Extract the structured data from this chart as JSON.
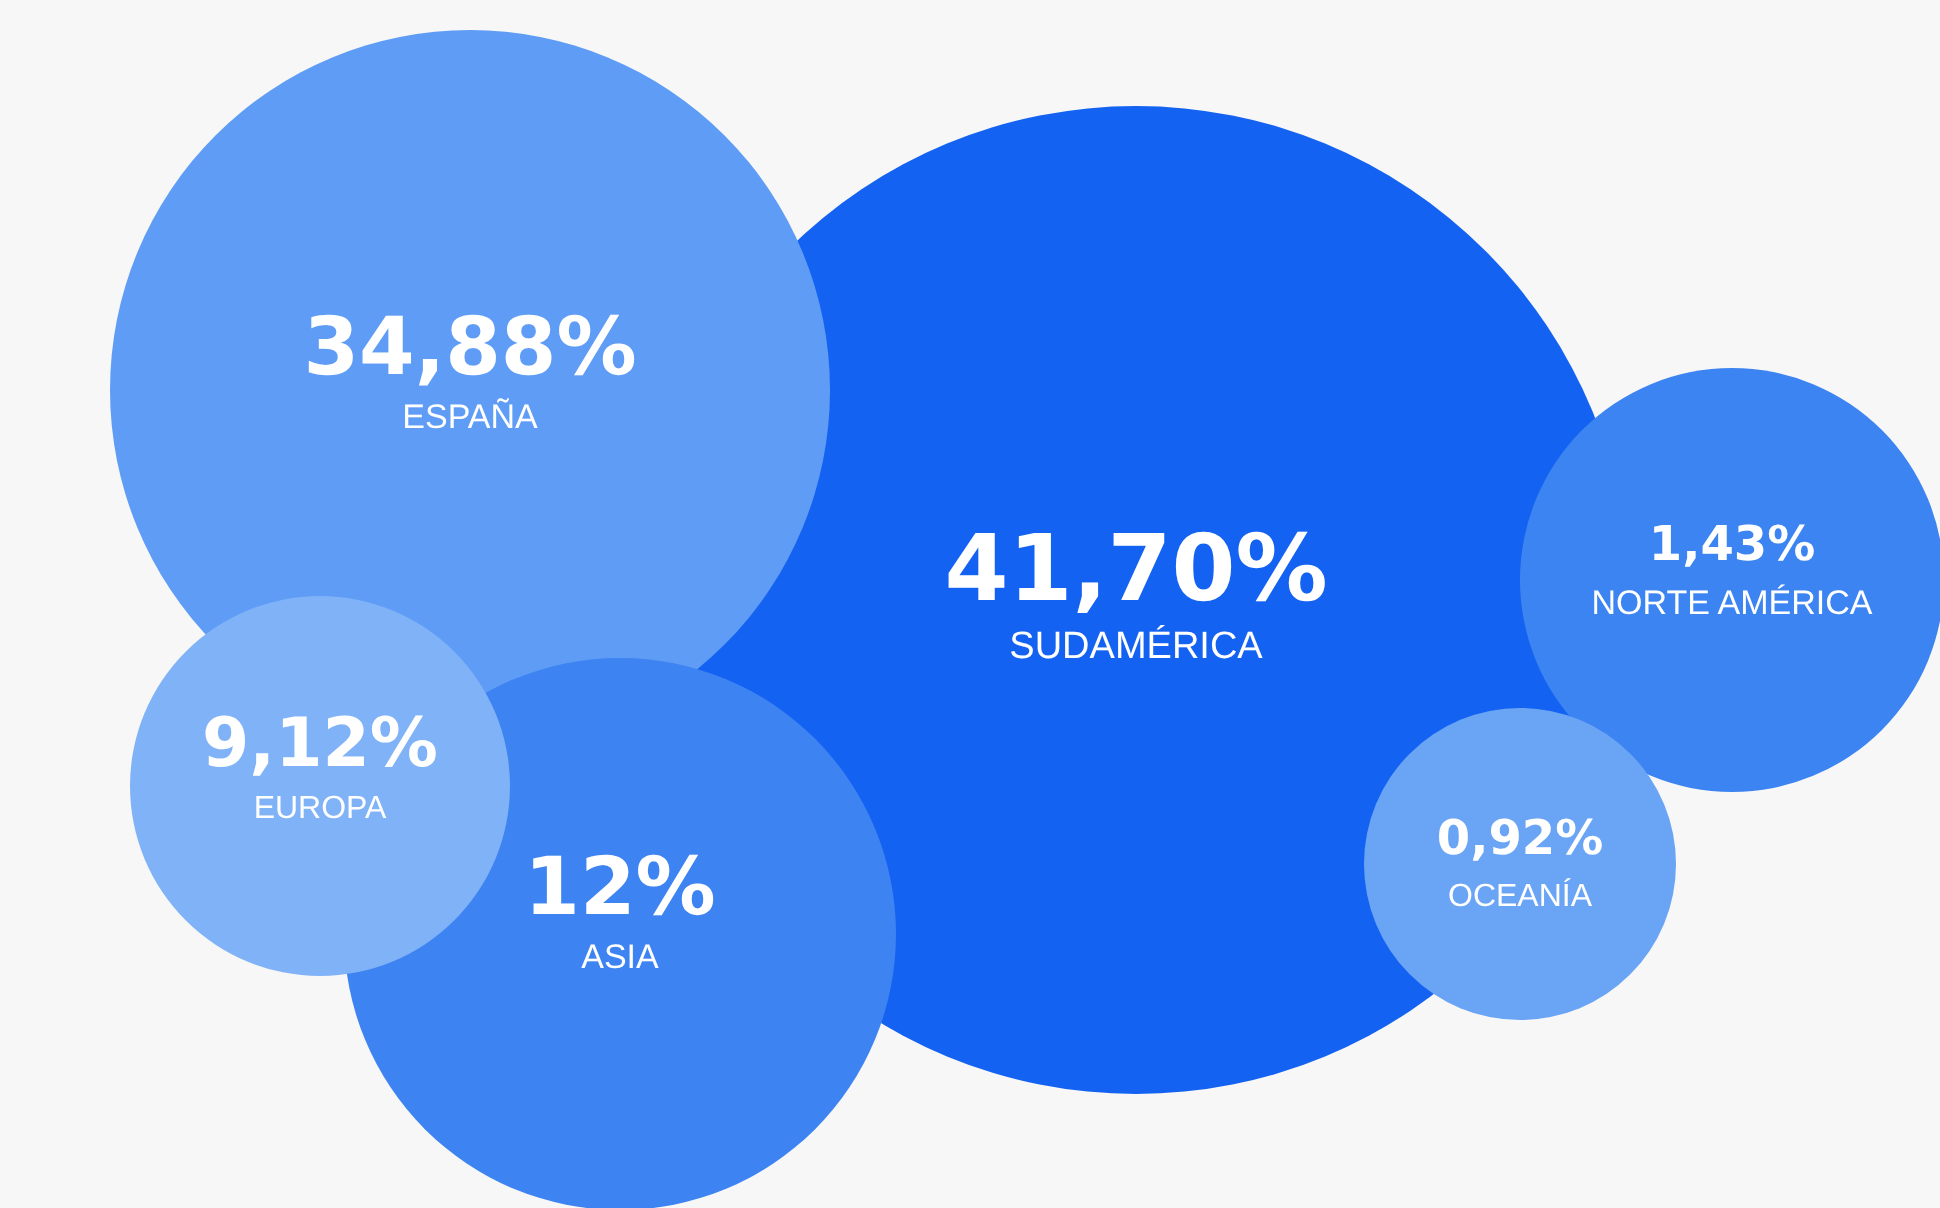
{
  "chart_data": {
    "type": "other",
    "categories": [
      "SUDAMÉRICA",
      "ESPAÑA",
      "ASIA",
      "EUROPA",
      "NORTE AMÉRICA",
      "OCEANÍA"
    ],
    "values": [
      41.7,
      34.88,
      12,
      9.12,
      1.43,
      0.92
    ],
    "value_labels": [
      "41,70%",
      "34,88%",
      "12%",
      "9,12%",
      "1,43%",
      "0,92%"
    ],
    "colors": [
      "#1462f2",
      "#5f9cf5",
      "#3d83f2",
      "#80b2f7",
      "#3c84f2",
      "#6aa4f5"
    ]
  }
}
